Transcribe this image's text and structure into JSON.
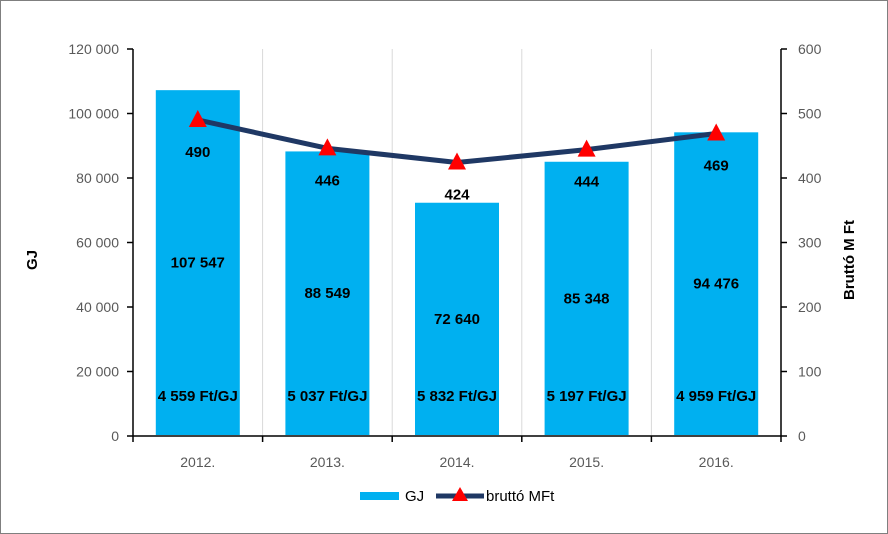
{
  "chart_data": {
    "type": "bar",
    "categories": [
      "2012.",
      "2013.",
      "2014.",
      "2015.",
      "2016."
    ],
    "series": [
      {
        "name": "GJ",
        "type": "bar",
        "axis": "left",
        "values": [
          107547,
          88549,
          72640,
          85348,
          94476
        ],
        "value_labels": [
          "107 547",
          "88 549",
          "72 640",
          "85 348",
          "94 476"
        ],
        "color": "#00b0f0"
      },
      {
        "name": "bruttó MFt",
        "type": "line",
        "axis": "right",
        "values": [
          490,
          446,
          424,
          444,
          469
        ],
        "value_labels": [
          "490",
          "446",
          "424",
          "444",
          "469"
        ],
        "color": "#1f3864",
        "marker_color": "#ff0000",
        "marker": "triangle"
      }
    ],
    "unit_price_labels": [
      "4 559 Ft/GJ",
      "5 037 Ft/GJ",
      "5 832 Ft/GJ",
      "5 197 Ft/GJ",
      "4 959 Ft/GJ"
    ],
    "ylabel": "GJ",
    "y2label": "Bruttó M Ft",
    "ylim": [
      0,
      120000
    ],
    "y2lim": [
      0,
      600
    ],
    "yticks": [
      "0",
      "20 000",
      "40 000",
      "60 000",
      "80 000",
      "100 000",
      "120 000"
    ],
    "y2ticks": [
      "0",
      "100",
      "200",
      "300",
      "400",
      "500",
      "600"
    ],
    "grid": "vertical",
    "legend": "bottom"
  }
}
